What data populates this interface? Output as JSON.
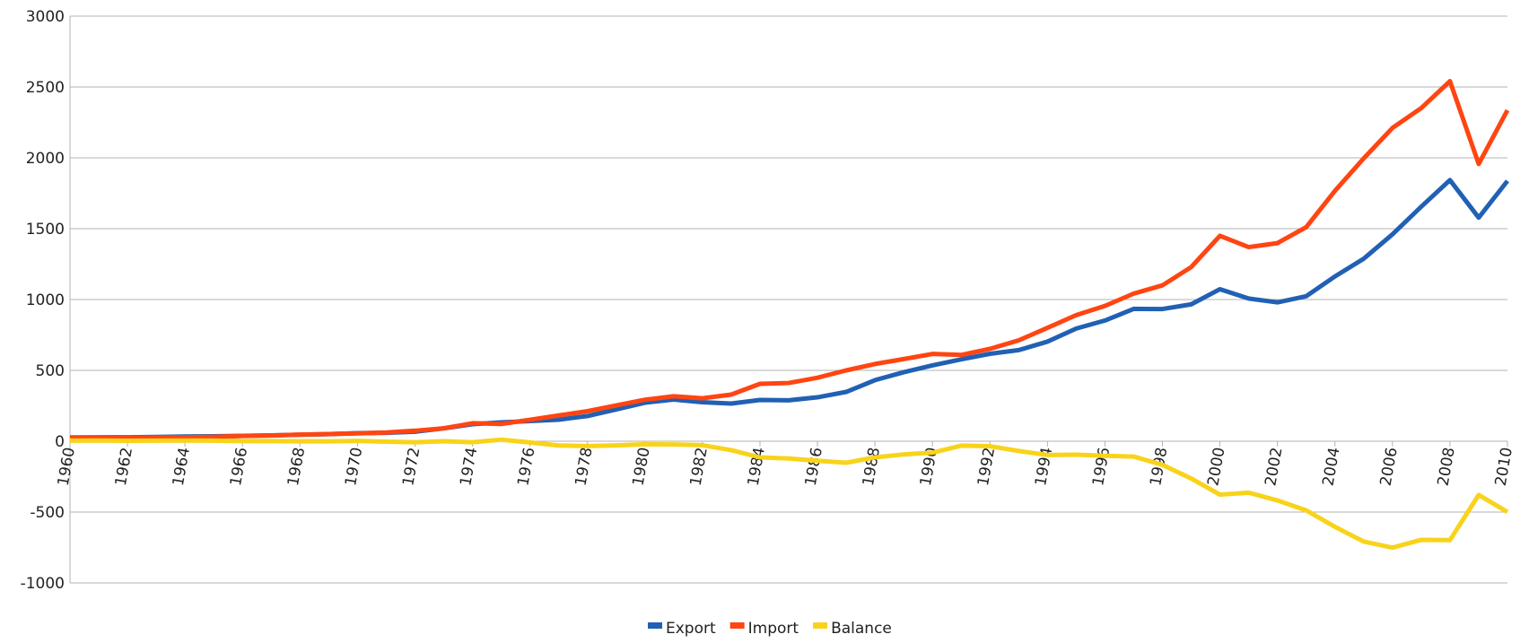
{
  "chart_data": {
    "type": "line",
    "x": [
      1960,
      1961,
      1962,
      1963,
      1964,
      1965,
      1966,
      1967,
      1968,
      1969,
      1970,
      1971,
      1972,
      1973,
      1974,
      1975,
      1976,
      1977,
      1978,
      1979,
      1980,
      1981,
      1982,
      1983,
      1984,
      1985,
      1986,
      1987,
      1988,
      1989,
      1990,
      1991,
      1992,
      1993,
      1994,
      1995,
      1996,
      1997,
      1998,
      1999,
      2000,
      2001,
      2002,
      2003,
      2004,
      2005,
      2006,
      2007,
      2008,
      2009,
      2010
    ],
    "xlim": [
      1960,
      2010
    ],
    "xticks": [
      1960,
      1962,
      1964,
      1966,
      1968,
      1970,
      1972,
      1974,
      1976,
      1978,
      1980,
      1982,
      1984,
      1986,
      1988,
      1990,
      1992,
      1994,
      1996,
      1998,
      2000,
      2002,
      2004,
      2006,
      2008,
      2010
    ],
    "ylim": [
      -1000,
      3000
    ],
    "yticks": [
      -1000,
      -500,
      0,
      500,
      1000,
      1500,
      2000,
      2500,
      3000
    ],
    "grid": true,
    "legend": "bottom",
    "series": [
      {
        "name": "Export",
        "color": "#2160b4",
        "values": [
          26,
          27,
          28,
          30,
          33,
          35,
          38,
          41,
          46,
          50,
          57,
          59,
          67,
          91,
          120,
          133,
          142,
          152,
          178,
          224,
          272,
          294,
          275,
          266,
          291,
          289,
          310,
          348,
          431,
          487,
          535,
          578,
          617,
          643,
          703,
          795,
          852,
          934,
          933,
          966,
          1073,
          1007,
          980,
          1023,
          1163,
          1288,
          1460,
          1655,
          1843,
          1578,
          1837
        ]
      },
      {
        "name": "Import",
        "color": "#ff4512",
        "values": [
          22,
          22,
          25,
          26,
          28,
          31,
          37,
          40,
          47,
          51,
          55,
          62,
          74,
          91,
          127,
          122,
          151,
          182,
          212,
          253,
          293,
          317,
          303,
          329,
          405,
          411,
          448,
          500,
          545,
          580,
          616,
          609,
          652,
          712,
          800,
          890,
          955,
          1042,
          1100,
          1229,
          1450,
          1370,
          1398,
          1511,
          1767,
          1996,
          2211,
          2351,
          2541,
          1957,
          2336
        ]
      },
      {
        "name": "Balance",
        "color": "#f8d31a",
        "values": [
          4,
          5,
          3,
          4,
          5,
          4,
          1,
          1,
          -1,
          -1,
          2,
          -3,
          -7,
          0,
          -7,
          11,
          -9,
          -30,
          -34,
          -29,
          -21,
          -23,
          -28,
          -63,
          -114,
          -122,
          -138,
          -152,
          -114,
          -93,
          -81,
          -31,
          -35,
          -69,
          -97,
          -95,
          -103,
          -108,
          -167,
          -263,
          -377,
          -363,
          -418,
          -488,
          -604,
          -708,
          -751,
          -696,
          -698,
          -379,
          -499
        ]
      }
    ]
  }
}
